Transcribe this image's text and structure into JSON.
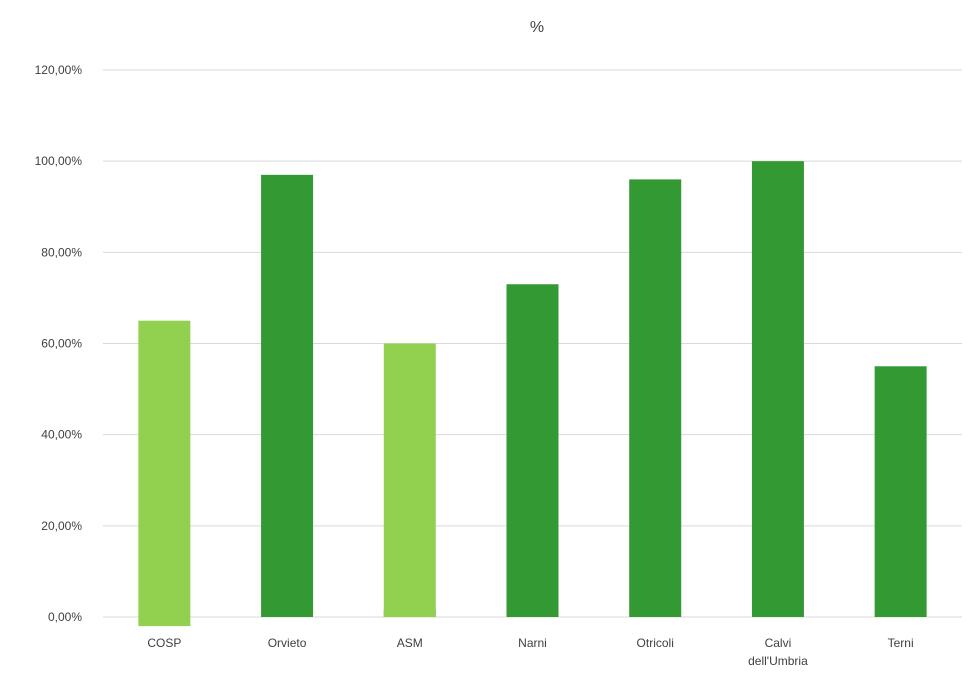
{
  "chart_data": {
    "type": "bar",
    "title": "%",
    "xlabel": "",
    "ylabel": "",
    "ylim": [
      0,
      120
    ],
    "y_tick_values": [
      0,
      20,
      40,
      60,
      80,
      100,
      120
    ],
    "y_tick_labels": [
      "0,00%",
      "20,00%",
      "40,00%",
      "60,00%",
      "80,00%",
      "100,00%",
      "120,00%"
    ],
    "grid": true,
    "legend": "none",
    "categories": [
      [
        "COSP"
      ],
      [
        "Orvieto"
      ],
      [
        "ASM"
      ],
      [
        "Narni"
      ],
      [
        "Otricoli"
      ],
      [
        "Calvi",
        "dell'Umbria"
      ],
      [
        "Terni"
      ]
    ],
    "values": [
      65,
      97,
      60,
      73,
      96,
      100,
      55
    ],
    "bar_colors": [
      "#92d050",
      "#339933",
      "#92d050",
      "#339933",
      "#339933",
      "#339933",
      "#339933"
    ],
    "overlay_bars": [
      {
        "category_index": 0,
        "value": -2,
        "color": "#92d050"
      },
      {
        "category_index": 2,
        "value": 1.5,
        "color": "#339933"
      }
    ]
  }
}
